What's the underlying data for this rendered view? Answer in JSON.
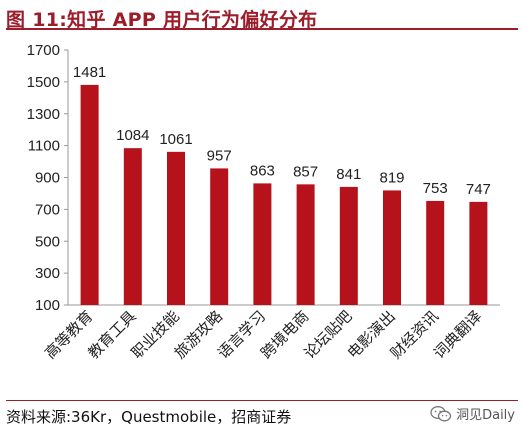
{
  "title": "图 11:知乎 APP 用户行为偏好分布",
  "source": "资料来源:36Kr，Questmobile，招商证券",
  "watermark": "洞见Daily",
  "colors": {
    "accent": "#9d1c2a",
    "bar": "#b5121b",
    "axis": "#999999"
  },
  "chart_data": {
    "type": "bar",
    "title": "",
    "xlabel": "",
    "ylabel": "",
    "categories": [
      "高等教育",
      "教育工具",
      "职业技能",
      "旅游攻略",
      "语言学习",
      "跨境电商",
      "论坛贴吧",
      "电影演出",
      "财经资讯",
      "词典翻译"
    ],
    "values": [
      1481,
      1084,
      1061,
      957,
      863,
      857,
      841,
      819,
      753,
      747
    ],
    "ylim": [
      100,
      1700
    ],
    "yticks": [
      100,
      300,
      500,
      700,
      900,
      1100,
      1300,
      1500,
      1700
    ],
    "grid": false,
    "data_labels": true
  }
}
